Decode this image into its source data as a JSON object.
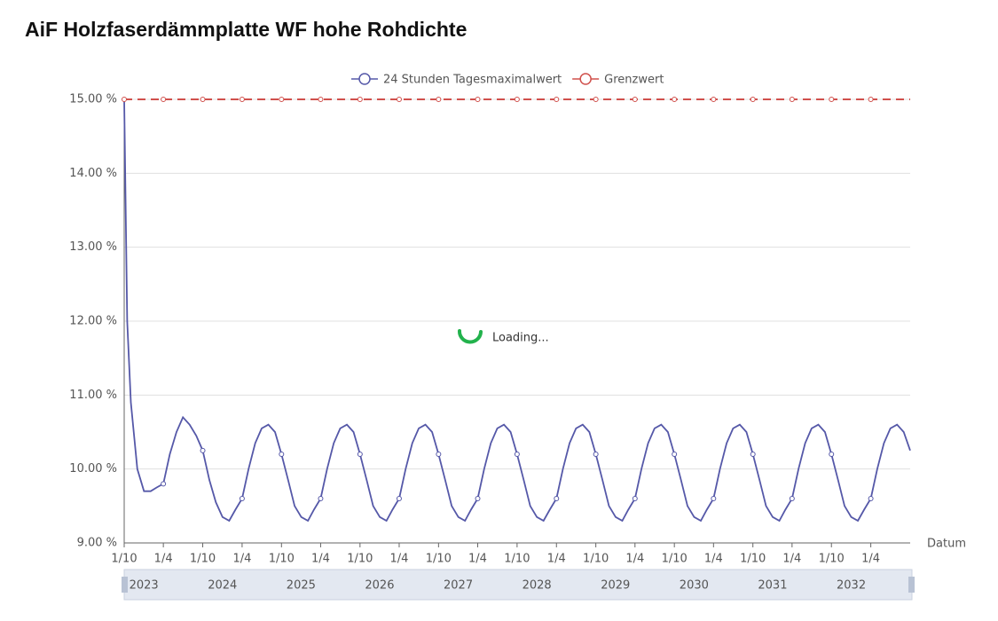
{
  "chart_data": {
    "type": "line",
    "title": "AiF Holzfaserdämmplatte WF hohe Rohdichte",
    "x_axis_label": "Datum",
    "x": [
      "2022-10-01",
      "2022-10-15",
      "2022-11-01",
      "2022-12-01",
      "2023-01-01",
      "2023-02-01",
      "2023-03-01",
      "2023-04-01",
      "2023-05-01",
      "2023-06-01",
      "2023-07-01",
      "2023-08-01",
      "2023-09-01",
      "2023-10-01",
      "2023-11-01",
      "2023-12-01",
      "2024-01-01",
      "2024-02-01",
      "2024-03-01",
      "2024-04-01",
      "2024-05-01",
      "2024-06-01",
      "2024-07-01",
      "2024-08-01",
      "2024-09-01",
      "2024-10-01",
      "2024-11-01",
      "2024-12-01",
      "2025-01-01",
      "2025-02-01",
      "2025-03-01",
      "2025-04-01",
      "2025-05-01",
      "2025-06-01",
      "2025-07-01",
      "2025-08-01",
      "2025-09-01",
      "2025-10-01",
      "2025-11-01",
      "2025-12-01",
      "2026-01-01",
      "2026-02-01",
      "2026-03-01",
      "2026-04-01",
      "2026-05-01",
      "2026-06-01",
      "2026-07-01",
      "2026-08-01",
      "2026-09-01",
      "2026-10-01",
      "2026-11-01",
      "2026-12-01",
      "2027-01-01",
      "2027-02-01",
      "2027-03-01",
      "2027-04-01",
      "2027-05-01",
      "2027-06-01",
      "2027-07-01",
      "2027-08-01",
      "2027-09-01",
      "2027-10-01",
      "2027-11-01",
      "2027-12-01",
      "2028-01-01",
      "2028-02-01",
      "2028-03-01",
      "2028-04-01",
      "2028-05-01",
      "2028-06-01",
      "2028-07-01",
      "2028-08-01",
      "2028-09-01",
      "2028-10-01",
      "2028-11-01",
      "2028-12-01",
      "2029-01-01",
      "2029-02-01",
      "2029-03-01",
      "2029-04-01",
      "2029-05-01",
      "2029-06-01",
      "2029-07-01",
      "2029-08-01",
      "2029-09-01",
      "2029-10-01",
      "2029-11-01",
      "2029-12-01",
      "2030-01-01",
      "2030-02-01",
      "2030-03-01",
      "2030-04-01",
      "2030-05-01",
      "2030-06-01",
      "2030-07-01",
      "2030-08-01",
      "2030-09-01",
      "2030-10-01",
      "2030-11-01",
      "2030-12-01",
      "2031-01-01",
      "2031-02-01",
      "2031-03-01",
      "2031-04-01",
      "2031-05-01",
      "2031-06-01",
      "2031-07-01",
      "2031-08-01",
      "2031-09-01",
      "2031-10-01",
      "2031-11-01",
      "2031-12-01",
      "2032-01-01",
      "2032-02-01",
      "2032-03-01",
      "2032-04-01",
      "2032-05-01",
      "2032-06-01",
      "2032-07-01",
      "2032-08-01",
      "2032-09-01",
      "2032-10-01"
    ],
    "series": [
      {
        "name": "24 Stunden Tagesmaximalwert",
        "color": "#5558a8",
        "dashed": false,
        "values": [
          15.0,
          12.0,
          10.9,
          10.0,
          9.7,
          9.7,
          9.75,
          9.8,
          10.2,
          10.5,
          10.7,
          10.6,
          10.45,
          10.25,
          9.85,
          9.55,
          9.35,
          9.3,
          9.45,
          9.6,
          10.0,
          10.35,
          10.55,
          10.6,
          10.5,
          10.2,
          9.85,
          9.5,
          9.35,
          9.3,
          9.45,
          9.6,
          10.0,
          10.35,
          10.55,
          10.6,
          10.5,
          10.2,
          9.85,
          9.5,
          9.35,
          9.3,
          9.45,
          9.6,
          10.0,
          10.35,
          10.55,
          10.6,
          10.5,
          10.2,
          9.85,
          9.5,
          9.35,
          9.3,
          9.45,
          9.6,
          10.0,
          10.35,
          10.55,
          10.6,
          10.5,
          10.2,
          9.85,
          9.5,
          9.35,
          9.3,
          9.45,
          9.6,
          10.0,
          10.35,
          10.55,
          10.6,
          10.5,
          10.2,
          9.85,
          9.5,
          9.35,
          9.3,
          9.45,
          9.6,
          10.0,
          10.35,
          10.55,
          10.6,
          10.5,
          10.2,
          9.85,
          9.5,
          9.35,
          9.3,
          9.45,
          9.6,
          10.0,
          10.35,
          10.55,
          10.6,
          10.5,
          10.2,
          9.85,
          9.5,
          9.35,
          9.3,
          9.45,
          9.6,
          10.0,
          10.35,
          10.55,
          10.6,
          10.5,
          10.2,
          9.85,
          9.5,
          9.35,
          9.3,
          9.45,
          9.6,
          10.0,
          10.35,
          10.55,
          10.6,
          10.5,
          10.25
        ]
      },
      {
        "name": "Grenzwert",
        "color": "#d0504c",
        "dashed": true,
        "values": [
          15,
          15,
          15,
          15,
          15,
          15,
          15,
          15,
          15,
          15,
          15,
          15,
          15,
          15,
          15,
          15,
          15,
          15,
          15,
          15,
          15,
          15,
          15,
          15,
          15,
          15,
          15,
          15,
          15,
          15,
          15,
          15,
          15,
          15,
          15,
          15,
          15,
          15,
          15,
          15,
          15,
          15,
          15,
          15,
          15,
          15,
          15,
          15,
          15,
          15,
          15,
          15,
          15,
          15,
          15,
          15,
          15,
          15,
          15,
          15,
          15,
          15,
          15,
          15,
          15,
          15,
          15,
          15,
          15,
          15,
          15,
          15,
          15,
          15,
          15,
          15,
          15,
          15,
          15,
          15,
          15,
          15,
          15,
          15,
          15,
          15,
          15,
          15,
          15,
          15,
          15,
          15,
          15,
          15,
          15,
          15,
          15,
          15,
          15,
          15,
          15,
          15,
          15,
          15,
          15,
          15,
          15,
          15,
          15,
          15,
          15,
          15,
          15,
          15,
          15,
          15,
          15,
          15,
          15,
          15,
          15,
          15
        ]
      }
    ],
    "xlim": [
      "2022-10-01",
      "2032-10-01"
    ],
    "xticks": [
      {
        "value": "2022-10-01",
        "label": "1/10"
      },
      {
        "value": "2023-04-01",
        "label": "1/4"
      },
      {
        "value": "2023-10-01",
        "label": "1/10"
      },
      {
        "value": "2024-04-01",
        "label": "1/4"
      },
      {
        "value": "2024-10-01",
        "label": "1/10"
      },
      {
        "value": "2025-04-01",
        "label": "1/4"
      },
      {
        "value": "2025-10-01",
        "label": "1/10"
      },
      {
        "value": "2026-04-01",
        "label": "1/4"
      },
      {
        "value": "2026-10-01",
        "label": "1/10"
      },
      {
        "value": "2027-04-01",
        "label": "1/4"
      },
      {
        "value": "2027-10-01",
        "label": "1/10"
      },
      {
        "value": "2028-04-01",
        "label": "1/4"
      },
      {
        "value": "2028-10-01",
        "label": "1/10"
      },
      {
        "value": "2029-04-01",
        "label": "1/4"
      },
      {
        "value": "2029-10-01",
        "label": "1/10"
      },
      {
        "value": "2030-04-01",
        "label": "1/4"
      },
      {
        "value": "2030-10-01",
        "label": "1/10"
      },
      {
        "value": "2031-04-01",
        "label": "1/4"
      },
      {
        "value": "2031-10-01",
        "label": "1/10"
      },
      {
        "value": "2032-04-01",
        "label": "1/4"
      }
    ],
    "ylim": [
      9,
      15
    ],
    "yticks": [
      {
        "value": 9,
        "label": "9.00 %"
      },
      {
        "value": 10,
        "label": "10.00 %"
      },
      {
        "value": 11,
        "label": "11.00 %"
      },
      {
        "value": 12,
        "label": "12.00 %"
      },
      {
        "value": 13,
        "label": "13.00 %"
      },
      {
        "value": 14,
        "label": "14.00 %"
      },
      {
        "value": 15,
        "label": "15.00 %"
      }
    ],
    "grid": true,
    "legend": "top",
    "data_zoom": {
      "labels": [
        "2023",
        "2024",
        "2025",
        "2026",
        "2027",
        "2028",
        "2029",
        "2030",
        "2031",
        "2032"
      ]
    }
  },
  "overlay": {
    "text": "Loading..."
  }
}
